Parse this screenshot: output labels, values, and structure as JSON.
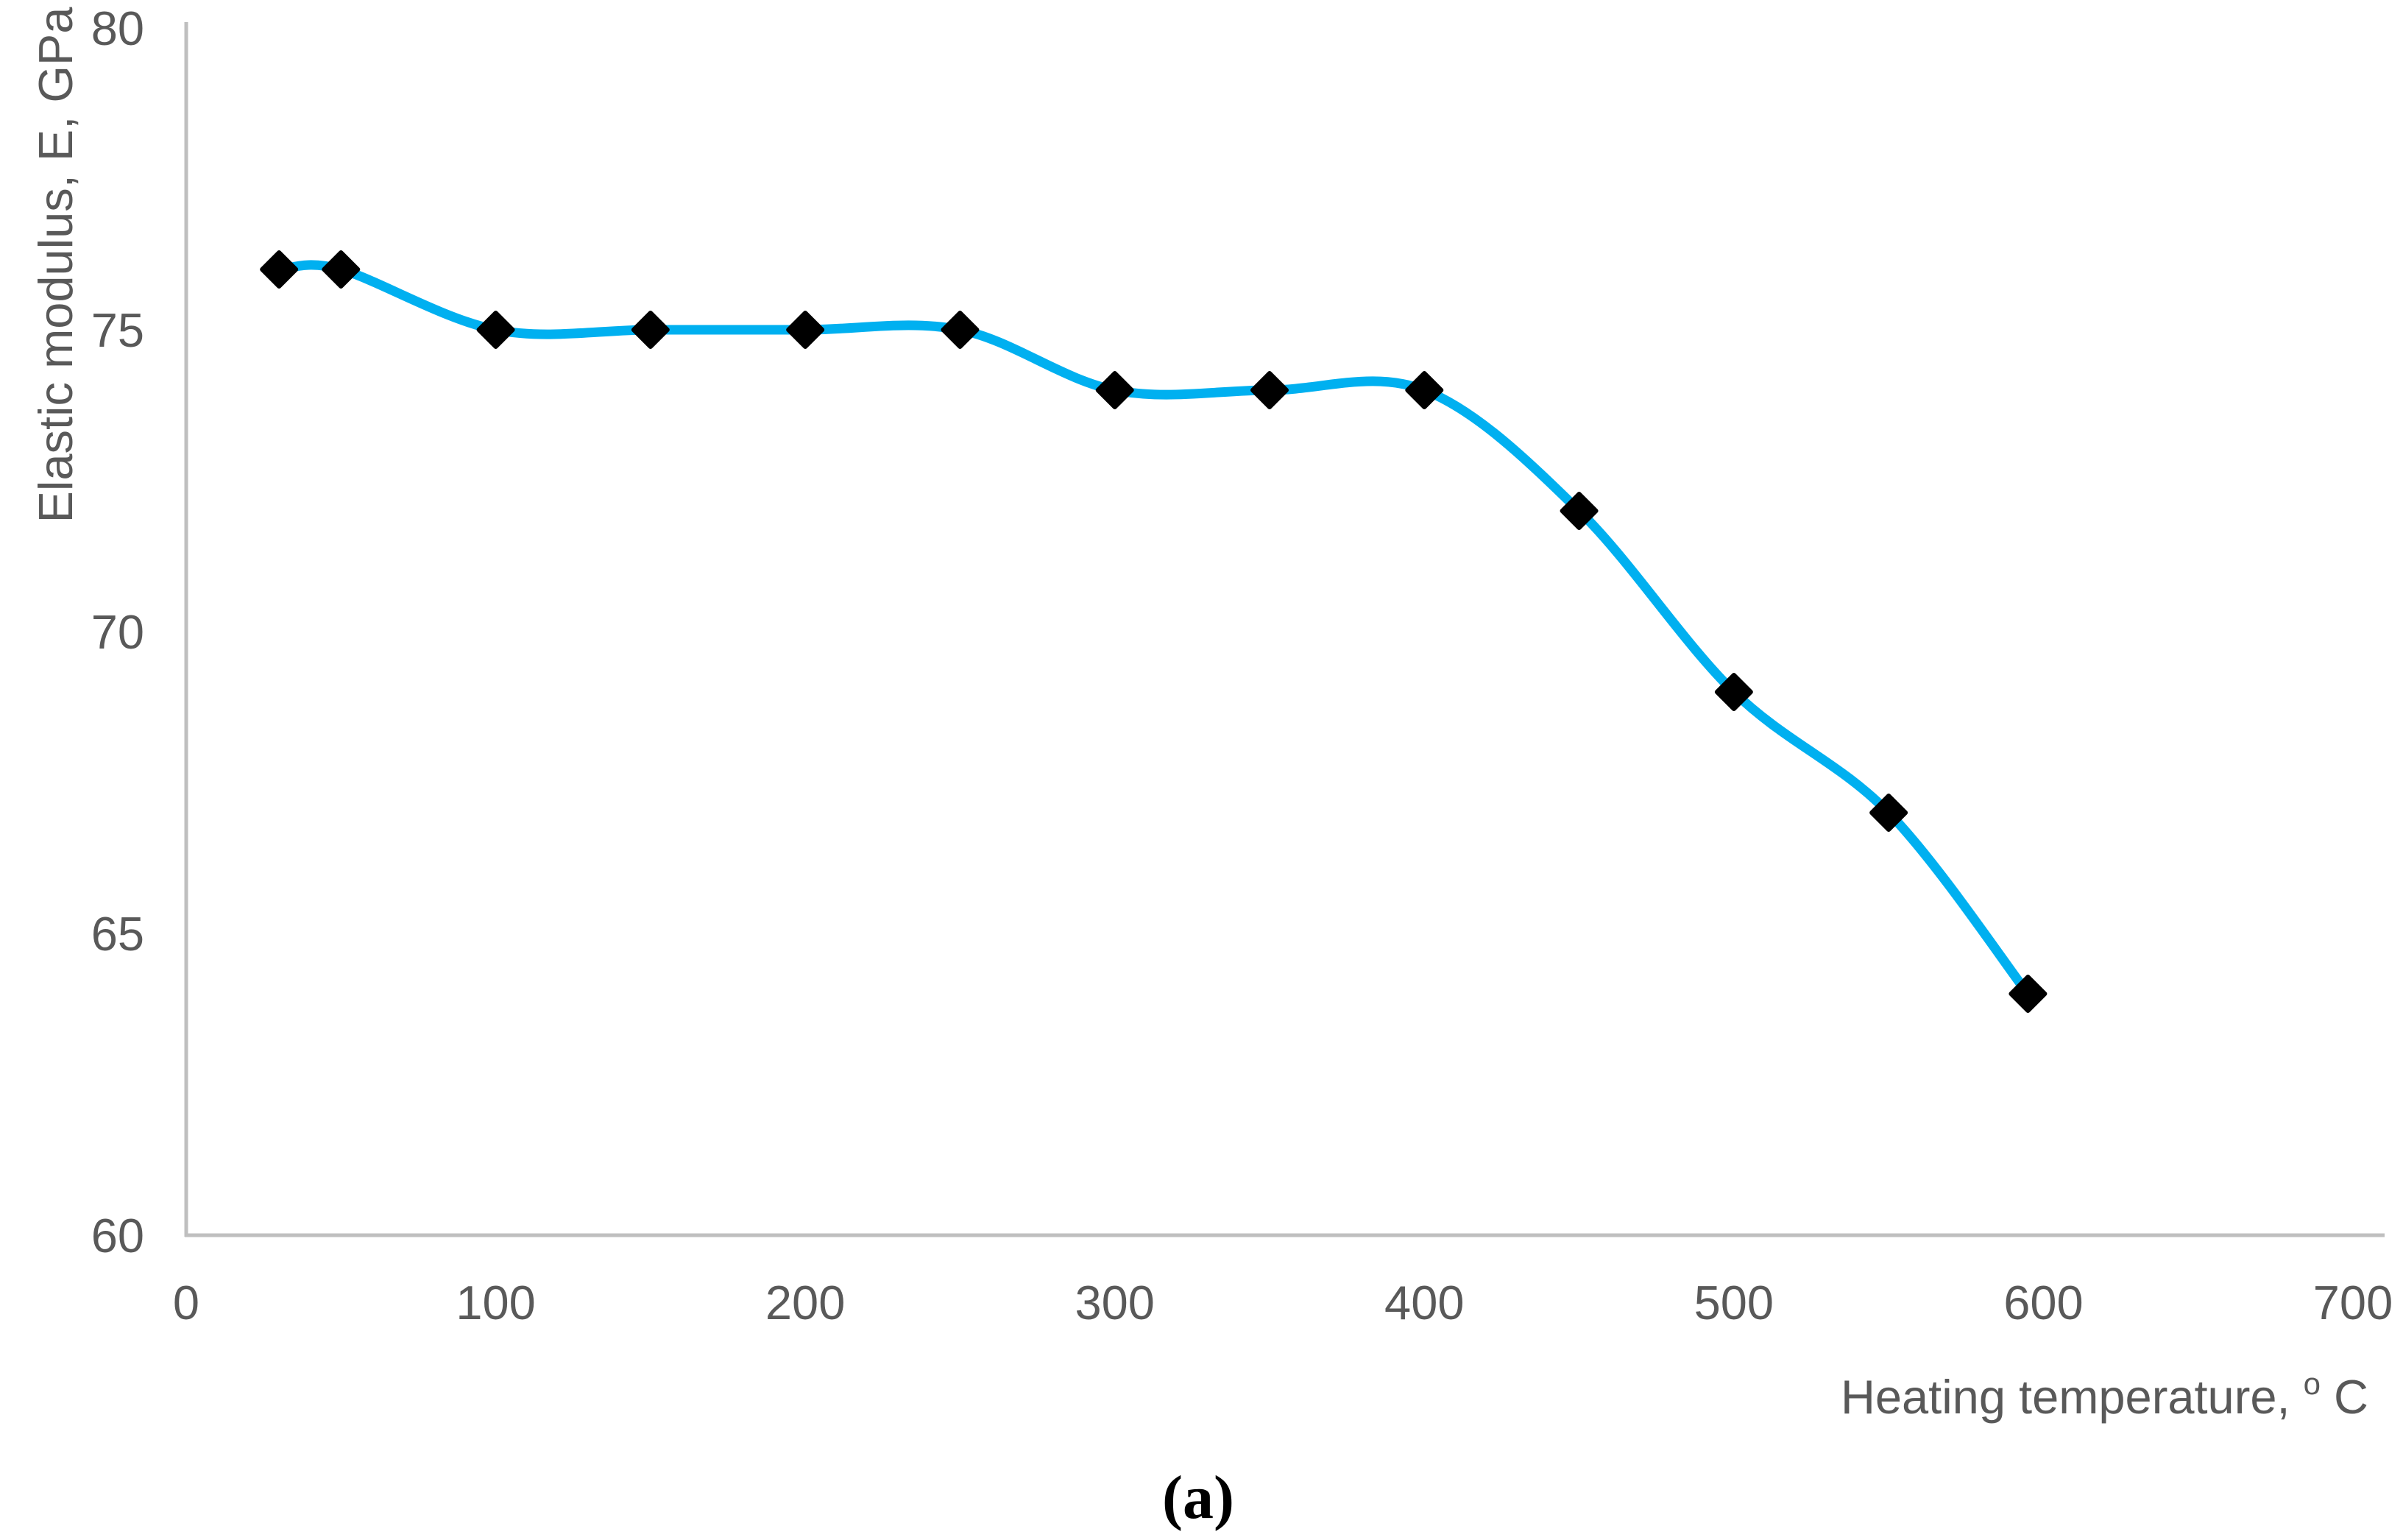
{
  "figure": {
    "caption": "(a)"
  },
  "chart_data": {
    "type": "line",
    "title": "",
    "x": [
      30,
      50,
      100,
      150,
      200,
      250,
      300,
      350,
      400,
      450,
      500,
      550,
      595
    ],
    "series": [
      {
        "name": "Elastic modulus",
        "values": [
          76,
          76,
          75,
          75,
          75,
          75,
          74,
          74,
          74,
          72,
          69,
          67,
          64
        ]
      }
    ],
    "xlabel": "Heating temperature,°C",
    "ylabel": "Elastic modulus, E, GPa",
    "xlim": [
      0,
      700
    ],
    "ylim": [
      60,
      80
    ],
    "x_ticks": [
      0,
      100,
      200,
      300,
      400,
      500,
      600,
      700
    ],
    "y_ticks": [
      60,
      65,
      70,
      75,
      80
    ],
    "grid": false,
    "legend": false,
    "smooth": true,
    "line_color": "#00B0F0",
    "marker": "diamond",
    "marker_color": "#000000",
    "axis_color": "#BFBFBF",
    "label_color": "#595959"
  },
  "x_axis_label": {
    "main": "Heating temperature,",
    "sup": "o",
    "end": "C"
  }
}
